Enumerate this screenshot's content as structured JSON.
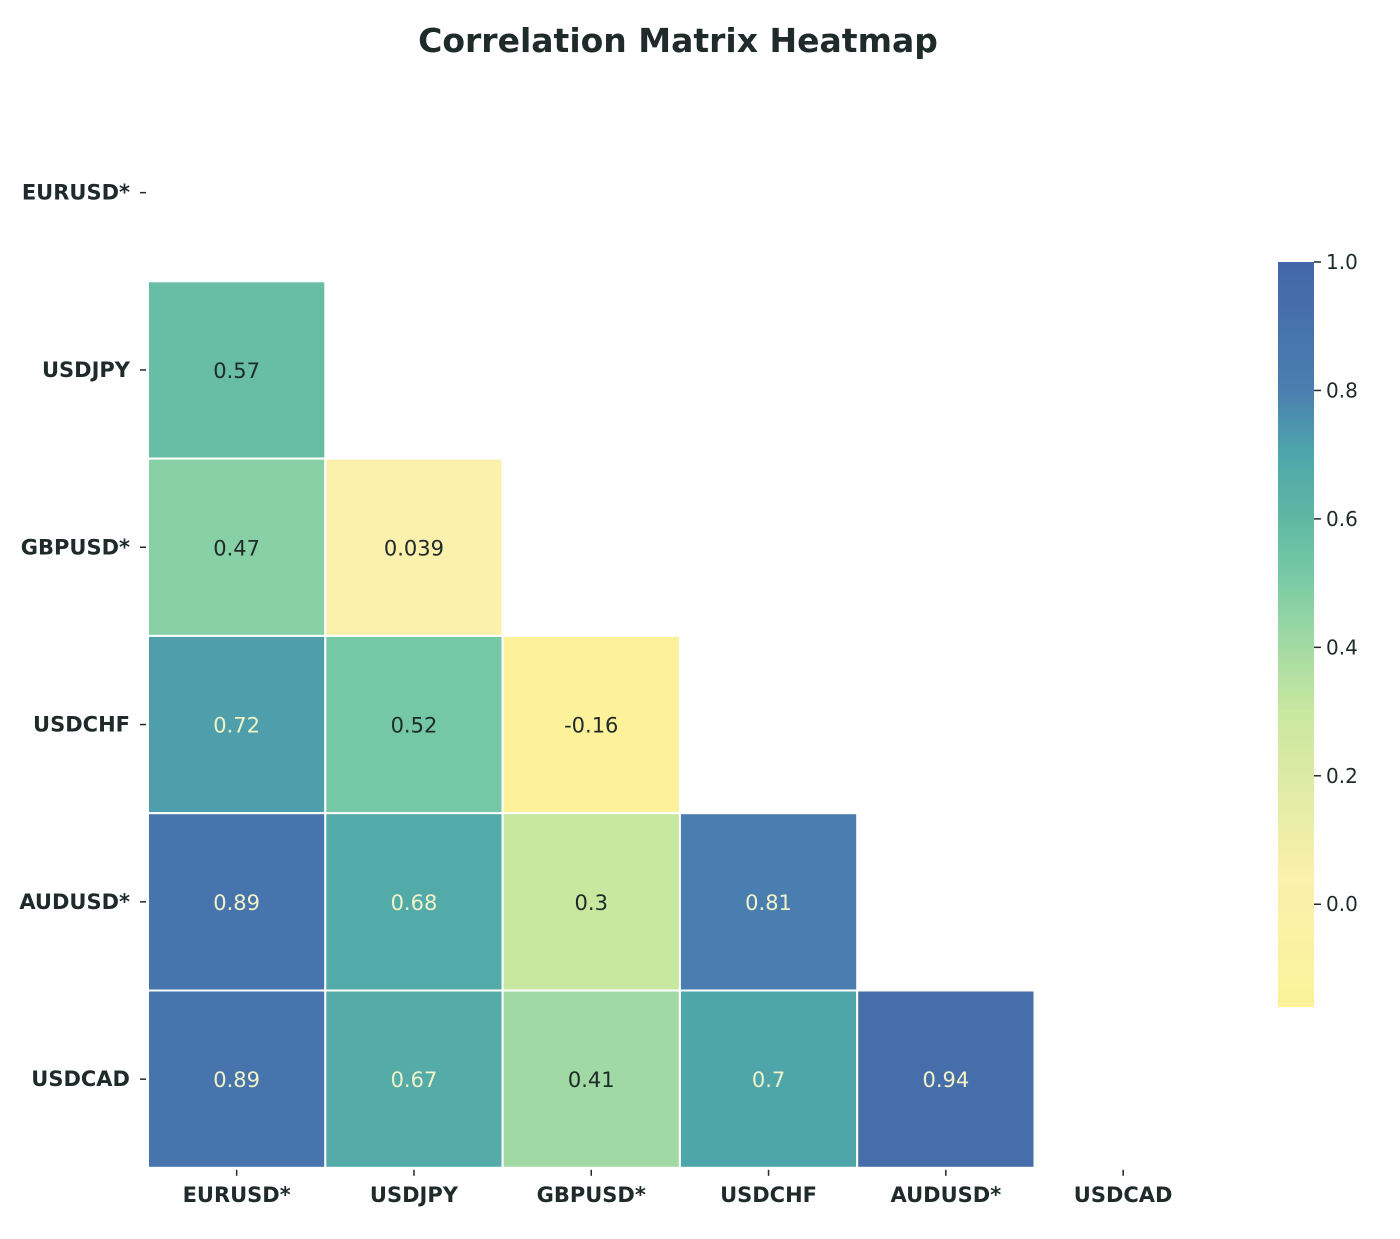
{
  "chart_data": {
    "type": "heatmap",
    "title": "Correlation Matrix Heatmap",
    "labels": [
      "EURUSD*",
      "USDJPY",
      "GBPUSD*",
      "USDCHF",
      "AUDUSD*",
      "USDCAD"
    ],
    "mask": "upper-triangle-including-diagonal",
    "cells": [
      {
        "row": 1,
        "col": 0,
        "value": 0.57,
        "label": "0.57"
      },
      {
        "row": 2,
        "col": 0,
        "value": 0.47,
        "label": "0.47"
      },
      {
        "row": 2,
        "col": 1,
        "value": 0.039,
        "label": "0.039"
      },
      {
        "row": 3,
        "col": 0,
        "value": 0.72,
        "label": "0.72"
      },
      {
        "row": 3,
        "col": 1,
        "value": 0.52,
        "label": "0.52"
      },
      {
        "row": 3,
        "col": 2,
        "value": -0.16,
        "label": "-0.16"
      },
      {
        "row": 4,
        "col": 0,
        "value": 0.89,
        "label": "0.89"
      },
      {
        "row": 4,
        "col": 1,
        "value": 0.68,
        "label": "0.68"
      },
      {
        "row": 4,
        "col": 2,
        "value": 0.3,
        "label": "0.3"
      },
      {
        "row": 4,
        "col": 3,
        "value": 0.81,
        "label": "0.81"
      },
      {
        "row": 5,
        "col": 0,
        "value": 0.89,
        "label": "0.89"
      },
      {
        "row": 5,
        "col": 1,
        "value": 0.67,
        "label": "0.67"
      },
      {
        "row": 5,
        "col": 2,
        "value": 0.41,
        "label": "0.41"
      },
      {
        "row": 5,
        "col": 3,
        "value": 0.7,
        "label": "0.7"
      },
      {
        "row": 5,
        "col": 4,
        "value": 0.94,
        "label": "0.94"
      }
    ],
    "colorbar": {
      "range": [
        -0.16,
        1.0
      ],
      "ticks": [
        1.0,
        0.8,
        0.6,
        0.4,
        0.2,
        0.0
      ],
      "tick_labels": [
        "1.0",
        "0.8",
        "0.6",
        "0.4",
        "0.2",
        "0.0"
      ],
      "colormap": "YlGnBu",
      "stops": [
        {
          "value": -0.16,
          "color": "#fdf29a"
        },
        {
          "value": 0.04,
          "color": "#fbf0ac"
        },
        {
          "value": 0.3,
          "color": "#c8e79f"
        },
        {
          "value": 0.42,
          "color": "#9cd8a4"
        },
        {
          "value": 0.52,
          "color": "#74c8a5"
        },
        {
          "value": 0.6,
          "color": "#5fb8a4"
        },
        {
          "value": 0.7,
          "color": "#4fa6aa"
        },
        {
          "value": 0.8,
          "color": "#4a7fb0"
        },
        {
          "value": 1.0,
          "color": "#4466a8"
        }
      ]
    },
    "text_color_dark": "#1f2a2a",
    "text_color_light": "#f0f3c8",
    "light_text_threshold": 0.6,
    "grid_line_color": "#ffffff"
  }
}
